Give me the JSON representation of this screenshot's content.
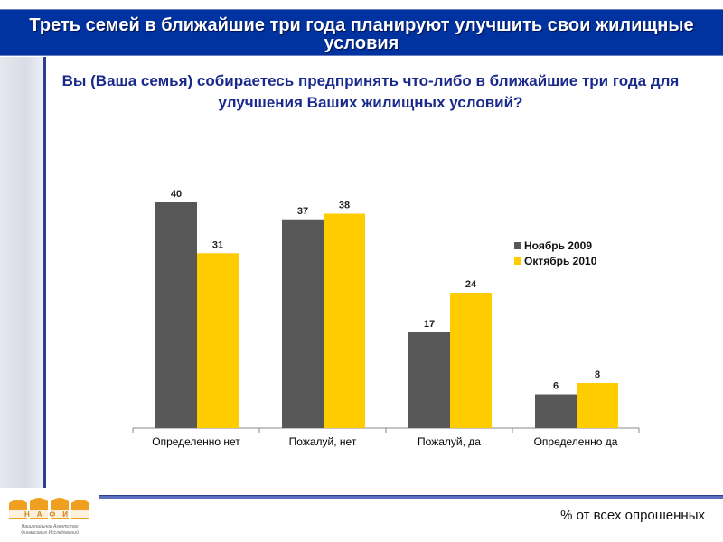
{
  "header": {
    "title": "Треть семей в ближайшие три года планируют улучшить свои жилищные условия"
  },
  "question": "Вы (Ваша семья) собираетесь предпринять что-либо в ближайшие три года для улучшения Ваших жилищных условий?",
  "footnote": "% от всех опрошенных",
  "logo": {
    "text": "НАФИ",
    "subtitle": "Национальное Агентство Финансовых Исследований"
  },
  "chart_data": {
    "type": "bar",
    "categories": [
      "Определенно нет",
      "Пожалуй, нет",
      "Пожалуй, да",
      "Определенно да"
    ],
    "series": [
      {
        "name": "Ноябрь 2009",
        "values": [
          40,
          37,
          17,
          6
        ],
        "color": "#585858"
      },
      {
        "name": "Октябрь 2010",
        "values": [
          31,
          38,
          24,
          8
        ],
        "color": "#ffcc00"
      }
    ],
    "ylim": [
      0,
      40
    ],
    "legend": "right",
    "grid": false
  }
}
